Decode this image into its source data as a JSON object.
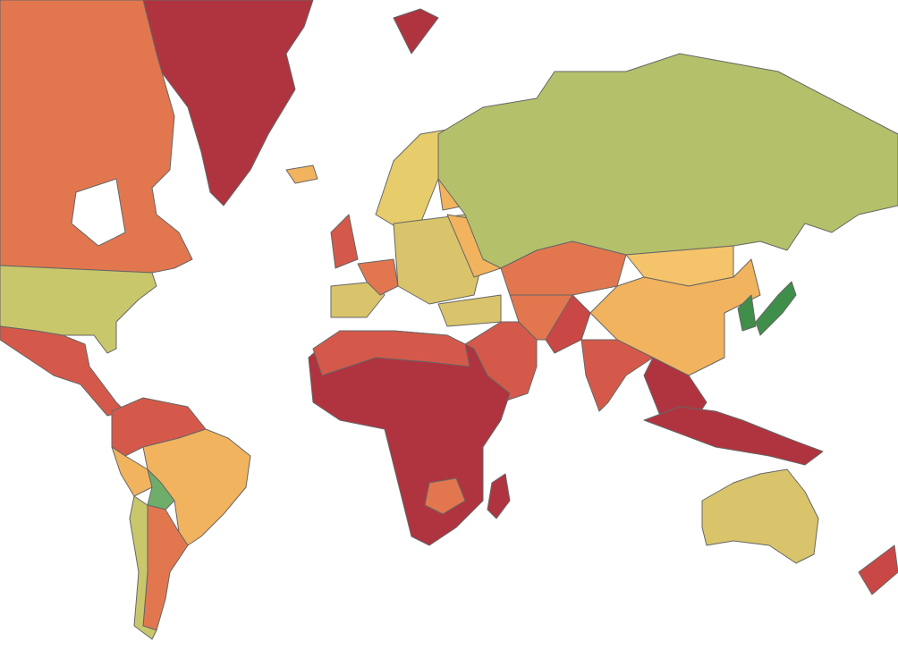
{
  "map": {
    "regions": [
      {
        "color": "#b0343f"
      },
      {
        "color": "#e2774f"
      },
      {
        "color": "#ffffff"
      },
      {
        "color": "#c9c76b"
      },
      {
        "color": "#d4594a"
      },
      {
        "color": "#d4594a"
      },
      {
        "color": "#f2b35e"
      },
      {
        "color": "#f2b35e"
      },
      {
        "color": "#6fae6a"
      },
      {
        "color": "#e2774f"
      },
      {
        "color": "#c9c76b"
      },
      {
        "color": "#e6cc6a"
      },
      {
        "color": "#f2b35e"
      },
      {
        "color": "#d4594a"
      },
      {
        "color": "#d9c46b"
      },
      {
        "color": "#e2774f"
      },
      {
        "color": "#d9c46b"
      },
      {
        "color": "#f2b35e"
      },
      {
        "color": "#d9c46b"
      },
      {
        "color": "#b5c06b"
      },
      {
        "color": "#e2774f"
      },
      {
        "color": "#f5c46a"
      },
      {
        "color": "#f2b35e"
      },
      {
        "color": "#e2774f"
      },
      {
        "color": "#d4594a"
      },
      {
        "color": "#c94845"
      },
      {
        "color": "#d4594a"
      },
      {
        "color": "#b0343f"
      },
      {
        "color": "#b0343f"
      },
      {
        "color": "#3f8f4a"
      },
      {
        "color": "#3f8f4a"
      },
      {
        "color": "#b0343f"
      },
      {
        "color": "#d4594a"
      },
      {
        "color": "#e2774f"
      },
      {
        "color": "#b0343f"
      },
      {
        "color": "#d9c46b"
      },
      {
        "color": "#c94845"
      },
      {
        "color": "#f2b35e"
      },
      {
        "color": "#b0343f"
      }
    ]
  }
}
